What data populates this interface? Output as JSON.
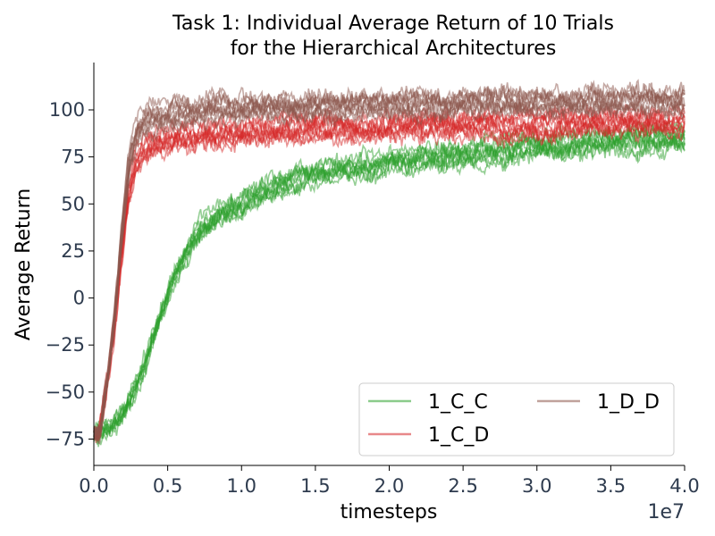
{
  "chart_data": {
    "type": "line",
    "title": [
      "Task 1: Individual Average Return of 10 Trials",
      "for the Hierarchical Architectures"
    ],
    "xlabel": "timesteps",
    "ylabel": "Average Return",
    "x_offset_label": "1e7",
    "xlim": [
      0,
      4.0
    ],
    "ylim": [
      -85,
      125
    ],
    "x_ticks": [
      0.0,
      0.5,
      1.0,
      1.5,
      2.0,
      2.5,
      3.0,
      3.5,
      4.0
    ],
    "x_tick_labels": [
      "0.0",
      "0.5",
      "1.0",
      "1.5",
      "2.0",
      "2.5",
      "3.0",
      "3.5",
      "4.0"
    ],
    "y_ticks": [
      -75,
      -50,
      -25,
      0,
      25,
      50,
      75,
      100
    ],
    "y_tick_labels": [
      "−75",
      "−50",
      "−25",
      "0",
      "25",
      "50",
      "75",
      "100"
    ],
    "grid": false,
    "legend": {
      "placement": "lower-right",
      "columns": 2
    },
    "series": [
      {
        "name": "1_C_C",
        "color": "#2ca02c",
        "trials": 10,
        "x": [
          0.0,
          0.1,
          0.2,
          0.3,
          0.4,
          0.5,
          0.6,
          0.7,
          0.8,
          1.0,
          1.2,
          1.5,
          2.0,
          2.5,
          3.0,
          3.5,
          4.0
        ],
        "values": [
          -72,
          -68,
          -58,
          -40,
          -15,
          8,
          25,
          36,
          42,
          52,
          60,
          67,
          72,
          76,
          80,
          83,
          85
        ]
      },
      {
        "name": "1_C_D",
        "color": "#d62728",
        "trials": 10,
        "x": [
          0.0,
          0.05,
          0.1,
          0.15,
          0.2,
          0.25,
          0.3,
          0.4,
          0.5,
          0.7,
          1.0,
          1.5,
          2.0,
          2.5,
          3.0,
          3.5,
          4.0
        ],
        "values": [
          -72,
          -50,
          -20,
          20,
          55,
          72,
          78,
          82,
          84,
          86,
          88,
          90,
          91,
          92,
          92,
          93,
          93
        ]
      },
      {
        "name": "1_D_D",
        "color": "#8c564b",
        "trials": 10,
        "x": [
          0.0,
          0.05,
          0.1,
          0.15,
          0.2,
          0.25,
          0.3,
          0.4,
          0.5,
          0.7,
          1.0,
          1.5,
          2.0,
          2.5,
          3.0,
          3.5,
          4.0
        ],
        "values": [
          -72,
          -45,
          -10,
          35,
          72,
          88,
          93,
          96,
          98,
          100,
          101,
          102,
          103,
          104,
          104,
          105,
          105
        ]
      }
    ]
  }
}
